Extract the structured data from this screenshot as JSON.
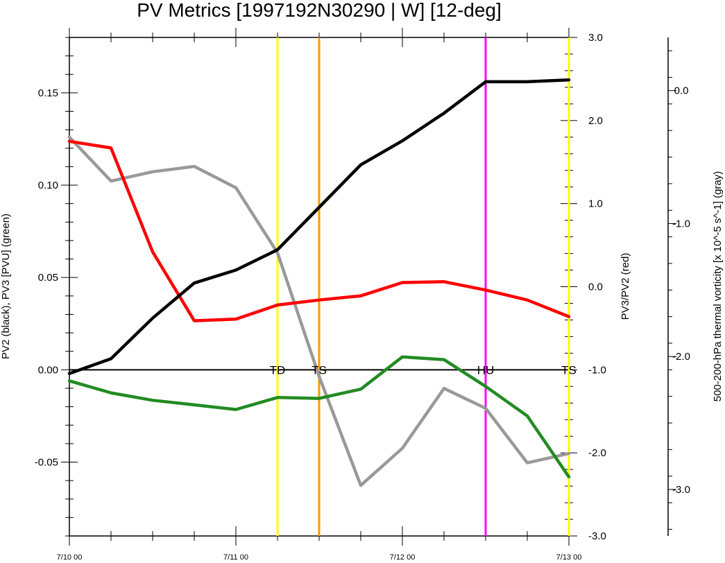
{
  "chart_data": {
    "type": "line",
    "title": "PV Metrics [1997192N30290 | W] [12-deg]",
    "x_tick_labels": [
      "7/10 00",
      "7/11 00",
      "7/12 00",
      "7/13 00"
    ],
    "x": [
      "7/10 00",
      "7/10 06",
      "7/10 12",
      "7/10 18",
      "7/11 00",
      "7/11 06",
      "7/11 12",
      "7/11 18",
      "7/12 00",
      "7/12 06",
      "7/12 12",
      "7/12 18",
      "7/13 00"
    ],
    "left_axis": {
      "label": "PV2 (black), PV3 [PVU] (green)",
      "ylim": [
        -0.09,
        0.18
      ],
      "tick_labels": [
        "0.15",
        "0.10",
        "0.05",
        "0.00",
        "-0.05"
      ],
      "tick_values": [
        0.15,
        0.1,
        0.05,
        0.0,
        -0.05
      ]
    },
    "right_axis_1": {
      "label": "PV3/PV2 (red)",
      "ylim": [
        -3.0,
        3.0
      ],
      "tick_labels": [
        "3.0",
        "2.0",
        "1.0",
        "0.0",
        "-1.0",
        "-2.0",
        "-3.0"
      ],
      "tick_values": [
        3.0,
        2.0,
        1.0,
        0.0,
        -1.0,
        -2.0,
        -3.0
      ]
    },
    "right_axis_2": {
      "label": "500-200-hPa thermal vorticity [x 10^-5 s^-1] (gray)",
      "ylim": [
        -3.35,
        0.4
      ],
      "tick_labels": [
        "0.0",
        "-1.0",
        "-2.0",
        "-3.0"
      ],
      "tick_values": [
        0.0,
        -1.0,
        -2.0,
        -3.0
      ]
    },
    "series": [
      {
        "name": "PV2",
        "axis": "left",
        "color": "#000000",
        "values": [
          -0.002,
          0.006,
          0.028,
          0.047,
          0.054,
          0.065,
          0.088,
          0.111,
          0.124,
          0.139,
          0.156,
          0.156,
          0.157
        ]
      },
      {
        "name": "PV3",
        "axis": "left",
        "color": "#228b22",
        "values": [
          -0.006,
          -0.0125,
          -0.0165,
          -0.019,
          -0.0215,
          -0.015,
          -0.0155,
          -0.0105,
          0.007,
          0.0055,
          -0.009,
          -0.025,
          -0.058
        ]
      },
      {
        "name": "PV3/PV2",
        "axis": "right1",
        "color": "#ff0000",
        "values": [
          1.75,
          1.67,
          0.42,
          -0.41,
          -0.39,
          -0.22,
          -0.16,
          -0.11,
          0.05,
          0.06,
          -0.04,
          -0.16,
          -0.36
        ]
      },
      {
        "name": "500-200-hPa thermal vorticity",
        "axis": "right2",
        "color": "#999999",
        "values": [
          -0.35,
          -0.68,
          -0.61,
          -0.57,
          -0.73,
          -1.22,
          -2.15,
          -2.97,
          -2.69,
          -2.24,
          -2.39,
          -2.8,
          -2.73
        ]
      }
    ],
    "zero_line": 0.0,
    "events": [
      {
        "label": "TD",
        "x": "7/11 06",
        "color": "#ffff00"
      },
      {
        "label": "TS",
        "x": "7/11 12",
        "color": "#ff9900"
      },
      {
        "label": "HU",
        "x": "7/12 12",
        "color": "#ff00ff"
      },
      {
        "label": "TS",
        "x": "7/13 00",
        "color": "#ffff00"
      }
    ],
    "grid": false,
    "legend": "none"
  }
}
